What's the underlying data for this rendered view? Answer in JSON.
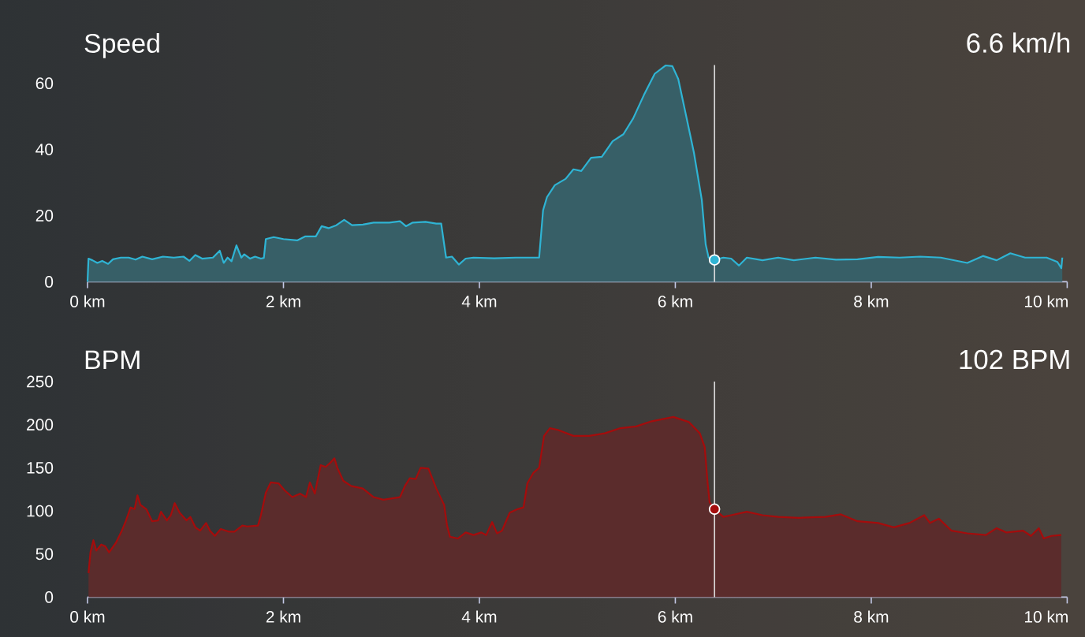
{
  "chart_data": [
    {
      "type": "area",
      "title": "Speed",
      "annotations": [
        "6.6 km/h"
      ],
      "xlim": [
        0,
        10
      ],
      "xticks": [
        {
          "value": 0,
          "label": "0 km"
        },
        {
          "value": 2,
          "label": "2 km"
        },
        {
          "value": 4,
          "label": "4 km"
        },
        {
          "value": 6,
          "label": "6 km"
        },
        {
          "value": 8,
          "label": "8 km"
        },
        {
          "value": 10,
          "label": "10 km"
        }
      ],
      "ylim": [
        0,
        65.5
      ],
      "yticks": [
        0,
        20,
        40,
        60
      ],
      "series": [
        {
          "color": "#2fb4d4",
          "x": [
            0,
            0.01,
            0.05,
            0.1,
            0.15,
            0.21,
            0.26,
            0.34,
            0.42,
            0.49,
            0.56,
            0.66,
            0.77,
            0.88,
            0.98,
            1.04,
            1.1,
            1.17,
            1.28,
            1.35,
            1.39,
            1.43,
            1.47,
            1.52,
            1.57,
            1.6,
            1.66,
            1.71,
            1.77,
            1.8,
            1.82,
            1.9,
            2.0,
            2.14,
            2.22,
            2.33,
            2.39,
            2.46,
            2.54,
            2.62,
            2.7,
            2.81,
            2.92,
            3.08,
            3.19,
            3.25,
            3.32,
            3.45,
            3.56,
            3.61,
            3.66,
            3.72,
            3.79,
            3.86,
            3.94,
            4.15,
            4.37,
            4.61,
            4.65,
            4.69,
            4.77,
            4.88,
            4.96,
            5.04,
            5.14,
            5.25,
            5.36,
            5.47,
            5.57,
            5.68,
            5.79,
            5.9,
            5.97,
            6.03,
            6.11,
            6.19,
            6.27,
            6.31,
            6.34,
            6.4,
            6.49,
            6.57,
            6.65,
            6.73,
            6.89,
            7.05,
            7.21,
            7.43,
            7.64,
            7.86,
            8.07,
            8.29,
            8.5,
            8.71,
            8.98,
            9.14,
            9.28,
            9.42,
            9.57,
            9.79,
            9.9,
            9.94,
            9.95
          ],
          "values": [
            0,
            7.0,
            6.5,
            5.7,
            6.3,
            5.4,
            6.8,
            7.3,
            7.3,
            6.7,
            7.6,
            6.8,
            7.6,
            7.3,
            7.6,
            6.3,
            8.1,
            7.0,
            7.3,
            9.4,
            5.7,
            7.3,
            6.2,
            11.0,
            7.3,
            8.3,
            7.0,
            7.6,
            7.0,
            7.2,
            12.9,
            13.5,
            12.9,
            12.5,
            13.7,
            13.7,
            16.8,
            16.2,
            17.1,
            18.7,
            17.1,
            17.3,
            17.9,
            17.9,
            18.3,
            16.8,
            17.9,
            18.1,
            17.6,
            17.6,
            7.3,
            7.6,
            5.2,
            7.0,
            7.3,
            7.1,
            7.3,
            7.3,
            21.6,
            25.6,
            29.2,
            31.1,
            34.0,
            33.5,
            37.5,
            37.8,
            42.5,
            44.6,
            49.4,
            56.5,
            62.9,
            65.4,
            65.2,
            61.3,
            50.2,
            39.0,
            24.8,
            11.3,
            7.3,
            6.6,
            7.3,
            7.0,
            4.9,
            7.3,
            6.5,
            7.3,
            6.5,
            7.3,
            6.7,
            6.8,
            7.5,
            7.3,
            7.6,
            7.3,
            5.7,
            7.8,
            6.5,
            8.6,
            7.3,
            7.3,
            6.0,
            4.1,
            7.3
          ]
        },
        {
          "type": "scatter",
          "marker": "circle",
          "color": "#2fb4d4",
          "x": [
            6.4
          ],
          "values": [
            6.6
          ]
        }
      ],
      "ref_lines": [
        {
          "axis": "x",
          "value": 6.4,
          "color": "#e0e0e0"
        }
      ]
    },
    {
      "type": "area",
      "title": "BPM",
      "annotations": [
        "102 BPM"
      ],
      "xlim": [
        0,
        10
      ],
      "xticks": [
        {
          "value": 0,
          "label": "0 km"
        },
        {
          "value": 2,
          "label": "2 km"
        },
        {
          "value": 4,
          "label": "4 km"
        },
        {
          "value": 6,
          "label": "6 km"
        },
        {
          "value": 8,
          "label": "8 km"
        },
        {
          "value": 10,
          "label": "10 km"
        }
      ],
      "ylim": [
        0,
        250
      ],
      "yticks": [
        0,
        50,
        100,
        150,
        200,
        250
      ],
      "series": [
        {
          "color": "#a50c0c",
          "x": [
            0.01,
            0.03,
            0.06,
            0.09,
            0.14,
            0.18,
            0.22,
            0.29,
            0.35,
            0.39,
            0.44,
            0.48,
            0.51,
            0.54,
            0.6,
            0.66,
            0.72,
            0.75,
            0.81,
            0.85,
            0.89,
            0.94,
            1.01,
            1.05,
            1.1,
            1.15,
            1.21,
            1.25,
            1.3,
            1.36,
            1.44,
            1.5,
            1.58,
            1.63,
            1.74,
            1.77,
            1.82,
            1.87,
            1.95,
            2.01,
            2.09,
            2.17,
            2.23,
            2.27,
            2.32,
            2.38,
            2.43,
            2.48,
            2.52,
            2.55,
            2.61,
            2.69,
            2.81,
            2.92,
            3.02,
            3.19,
            3.24,
            3.29,
            3.35,
            3.4,
            3.48,
            3.56,
            3.64,
            3.67,
            3.7,
            3.78,
            3.86,
            3.94,
            4.02,
            4.07,
            4.13,
            4.18,
            4.23,
            4.31,
            4.39,
            4.45,
            4.49,
            4.55,
            4.61,
            4.66,
            4.72,
            4.8,
            4.96,
            5.12,
            5.28,
            5.44,
            5.6,
            5.76,
            5.98,
            6.14,
            6.25,
            6.3,
            6.33,
            6.35,
            6.4,
            6.49,
            6.57,
            6.73,
            6.89,
            7.05,
            7.26,
            7.53,
            7.69,
            7.86,
            8.07,
            8.23,
            8.39,
            8.54,
            8.6,
            8.69,
            8.82,
            8.98,
            9.17,
            9.28,
            9.38,
            9.55,
            9.63,
            9.71,
            9.76,
            9.84,
            9.94
          ],
          "values": [
            28,
            52,
            66,
            54,
            61,
            59,
            52,
            63,
            77,
            88,
            104,
            102,
            118,
            107,
            102,
            88,
            89,
            99,
            89,
            95,
            109,
            98,
            89,
            93,
            81,
            77,
            86,
            77,
            71,
            79,
            76,
            76,
            83,
            82,
            83,
            95,
            121,
            133,
            132,
            124,
            116,
            120,
            116,
            133,
            120,
            153,
            151,
            156,
            161,
            150,
            135,
            129,
            126,
            116,
            113,
            116,
            129,
            138,
            137,
            150,
            149,
            126,
            107,
            83,
            70,
            68,
            75,
            72,
            75,
            72,
            87,
            74,
            77,
            98,
            102,
            104,
            132,
            144,
            150,
            187,
            196,
            194,
            187,
            187,
            190,
            196,
            198,
            204,
            209,
            203,
            190,
            174,
            132,
            110,
            102,
            93,
            95,
            99,
            95,
            93,
            92,
            93,
            96,
            88,
            86,
            81,
            86,
            95,
            86,
            91,
            77,
            74,
            72,
            80,
            75,
            77,
            71,
            80,
            68,
            71,
            72
          ]
        },
        {
          "type": "scatter",
          "marker": "circle",
          "color": "#a50c0c",
          "x": [
            6.4
          ],
          "values": [
            102
          ]
        }
      ],
      "ref_lines": [
        {
          "axis": "x",
          "value": 6.4,
          "color": "#e0e0e0"
        }
      ]
    }
  ]
}
